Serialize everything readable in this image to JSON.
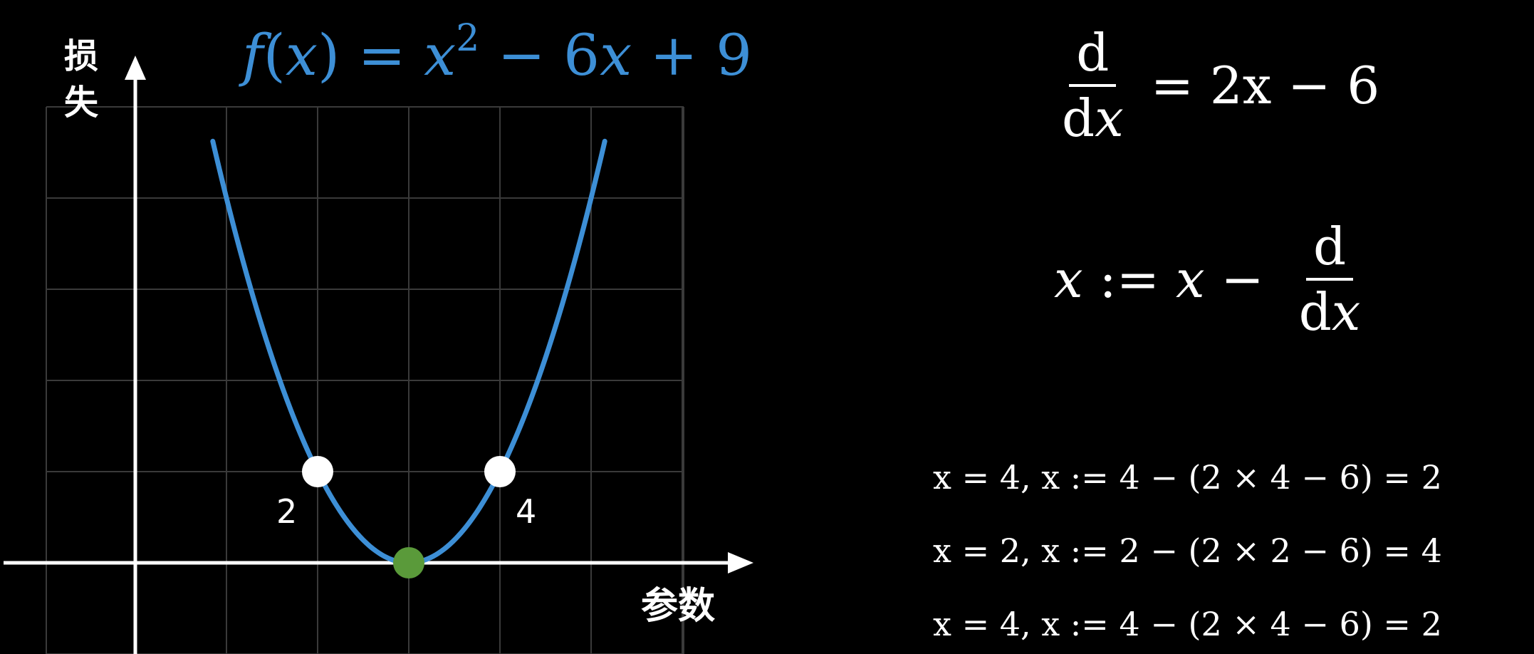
{
  "chart_data": {
    "type": "line",
    "function_label": {
      "f": "f",
      "open": "(",
      "var": "x",
      "close_eq": ") = ",
      "var2": "x",
      "exp": "2",
      "rest1": " − 6",
      "var3": "x",
      "rest2": " + 9"
    },
    "function": "x^2 - 6x + 9",
    "ylabel_line1": "损",
    "ylabel_line2": "失",
    "xlabel": "参数",
    "curve_color": "#3d8fd6",
    "grid": true,
    "xlim": [
      -1.5,
      6
    ],
    "ylim": [
      -1,
      5
    ],
    "curve_x_range": [
      0.85,
      5.15
    ],
    "points": [
      {
        "x": 2,
        "y": 1,
        "label": "2",
        "color": "#ffffff"
      },
      {
        "x": 4,
        "y": 1,
        "label": "4",
        "color": "#ffffff"
      },
      {
        "x": 3,
        "y": 0,
        "label": "",
        "color": "#5a9a3a"
      }
    ]
  },
  "equations": {
    "derivative": {
      "num": "d",
      "den_d": "d",
      "den_x": "x",
      "rhs": "= 2x − 6"
    },
    "update": {
      "lhs": "x",
      "assign": " := ",
      "x2": "x",
      "minus": " − ",
      "num": "d",
      "den_d": "d",
      "den_x": "x"
    },
    "steps": [
      "x = 4, x := 4 − (2 × 4 − 6) = 2",
      "x = 2, x := 2 − (2 × 2 − 6) = 4",
      "x = 4, x := 4 − (2 × 4 − 6) = 2"
    ]
  }
}
